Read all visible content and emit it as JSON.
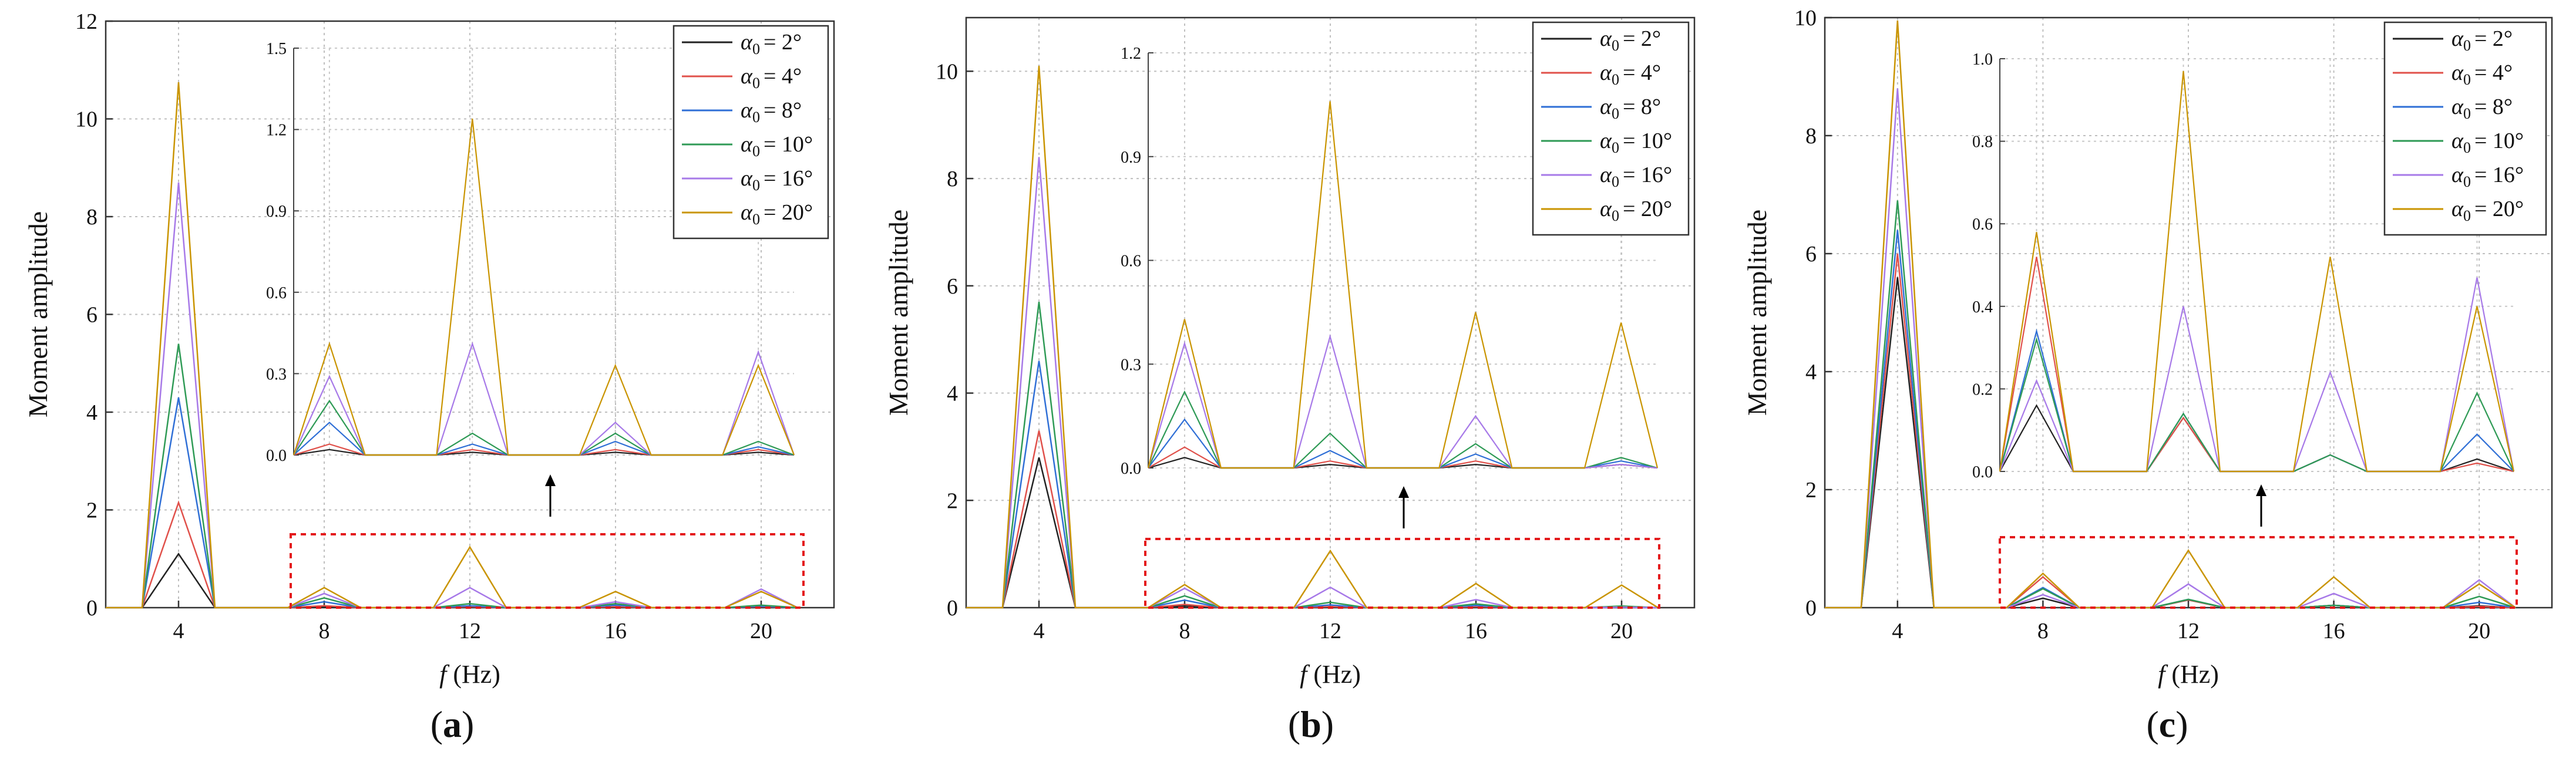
{
  "figure": {
    "legend_prefix": "α",
    "legend_sub": "0",
    "series_styles": [
      {
        "color": "#222222"
      },
      {
        "color": "#e0504a"
      },
      {
        "color": "#2f6fd6"
      },
      {
        "color": "#2e9a55"
      },
      {
        "color": "#a779e8"
      },
      {
        "color": "#c99400"
      }
    ]
  },
  "chart_data": [
    {
      "type": "line",
      "panel_label": "(a)",
      "label_text": "a",
      "title": "",
      "xlabel_var": "f",
      "xlabel_unit": " (Hz)",
      "ylabel": "Moment amplitude",
      "x": [
        2,
        3,
        4,
        5,
        6,
        7,
        8,
        9,
        10,
        11,
        12,
        13,
        14,
        15,
        16,
        17,
        18,
        19,
        20,
        21
      ],
      "xlim": [
        2,
        22
      ],
      "ylim": [
        0,
        12
      ],
      "xticks": [
        4,
        8,
        12,
        16,
        20
      ],
      "yticks": [
        0,
        2,
        4,
        6,
        8,
        10,
        12
      ],
      "series": [
        {
          "name": "= 2°",
          "values": [
            0,
            0,
            1.1,
            0,
            0,
            0,
            0.02,
            0,
            0,
            0,
            0.01,
            0,
            0,
            0,
            0.01,
            0,
            0,
            0,
            0.01,
            0
          ]
        },
        {
          "name": "= 4°",
          "values": [
            0,
            0,
            2.15,
            0,
            0,
            0,
            0.04,
            0,
            0,
            0,
            0.02,
            0,
            0,
            0,
            0.02,
            0,
            0,
            0,
            0.02,
            0
          ]
        },
        {
          "name": "= 8°",
          "values": [
            0,
            0,
            4.3,
            0,
            0,
            0,
            0.12,
            0,
            0,
            0,
            0.04,
            0,
            0,
            0,
            0.05,
            0,
            0,
            0,
            0.03,
            0
          ]
        },
        {
          "name": "= 10°",
          "values": [
            0,
            0,
            5.4,
            0,
            0,
            0,
            0.2,
            0,
            0,
            0,
            0.08,
            0,
            0,
            0,
            0.08,
            0,
            0,
            0,
            0.05,
            0
          ]
        },
        {
          "name": "= 16°",
          "values": [
            0,
            0,
            8.7,
            0,
            0,
            0,
            0.29,
            0,
            0,
            0,
            0.41,
            0,
            0,
            0,
            0.12,
            0,
            0,
            0,
            0.38,
            0
          ]
        },
        {
          "name": "= 20°",
          "values": [
            0,
            0,
            10.75,
            0,
            0,
            0,
            0.41,
            0,
            0,
            0,
            1.24,
            0,
            0,
            0,
            0.33,
            0,
            0,
            0,
            0.33,
            0
          ]
        }
      ],
      "inset": {
        "xlim": [
          7,
          21
        ],
        "ylim": [
          0,
          1.5
        ],
        "yticks": [
          0.0,
          0.3,
          0.6,
          0.9,
          1.2,
          1.5
        ]
      }
    },
    {
      "type": "line",
      "panel_label": "(b)",
      "label_text": "b",
      "title": "",
      "xlabel_var": "f",
      "xlabel_unit": " (Hz)",
      "ylabel": "Moment amplitude",
      "x": [
        2,
        3,
        4,
        5,
        6,
        7,
        8,
        9,
        10,
        11,
        12,
        13,
        14,
        15,
        16,
        17,
        18,
        19,
        20,
        21
      ],
      "xlim": [
        2,
        22
      ],
      "ylim": [
        0,
        11
      ],
      "xticks": [
        4,
        8,
        12,
        16,
        20
      ],
      "yticks": [
        0,
        2,
        4,
        6,
        8,
        10
      ],
      "series": [
        {
          "name": "= 2°",
          "values": [
            0,
            0,
            2.8,
            0,
            0,
            0,
            0.03,
            0,
            0,
            0,
            0.01,
            0,
            0,
            0,
            0.01,
            0,
            0,
            0,
            0.01,
            0
          ]
        },
        {
          "name": "= 4°",
          "values": [
            0,
            0,
            3.3,
            0,
            0,
            0,
            0.06,
            0,
            0,
            0,
            0.02,
            0,
            0,
            0,
            0.02,
            0,
            0,
            0,
            0.01,
            0
          ]
        },
        {
          "name": "= 8°",
          "values": [
            0,
            0,
            4.6,
            0,
            0,
            0,
            0.14,
            0,
            0,
            0,
            0.05,
            0,
            0,
            0,
            0.04,
            0,
            0,
            0,
            0.02,
            0
          ]
        },
        {
          "name": "= 10°",
          "values": [
            0,
            0,
            5.7,
            0,
            0,
            0,
            0.22,
            0,
            0,
            0,
            0.1,
            0,
            0,
            0,
            0.07,
            0,
            0,
            0,
            0.03,
            0
          ]
        },
        {
          "name": "= 16°",
          "values": [
            0,
            0,
            8.4,
            0,
            0,
            0,
            0.36,
            0,
            0,
            0,
            0.38,
            0,
            0,
            0,
            0.15,
            0,
            0,
            0,
            0.01,
            0
          ]
        },
        {
          "name": "= 20°",
          "values": [
            0,
            0,
            10.1,
            0,
            0,
            0,
            0.43,
            0,
            0,
            0,
            1.06,
            0,
            0,
            0,
            0.45,
            0,
            0,
            0,
            0.42,
            0
          ]
        }
      ],
      "inset": {
        "xlim": [
          7,
          21
        ],
        "ylim": [
          0,
          1.2
        ],
        "yticks": [
          0.0,
          0.3,
          0.6,
          0.9,
          1.2
        ]
      }
    },
    {
      "type": "line",
      "panel_label": "(c)",
      "label_text": "c",
      "title": "",
      "xlabel_var": "f",
      "xlabel_unit": " (Hz)",
      "ylabel": "Moment amplitude",
      "x": [
        2,
        3,
        4,
        5,
        6,
        7,
        8,
        9,
        10,
        11,
        12,
        13,
        14,
        15,
        16,
        17,
        18,
        19,
        20,
        21
      ],
      "xlim": [
        2,
        22
      ],
      "ylim": [
        0,
        10
      ],
      "xticks": [
        4,
        8,
        12,
        16,
        20
      ],
      "yticks": [
        0,
        2,
        4,
        6,
        8,
        10
      ],
      "series": [
        {
          "name": "= 2°",
          "values": [
            0,
            0,
            5.6,
            0,
            0,
            0,
            0.16,
            0,
            0,
            0,
            0.13,
            0,
            0,
            0,
            0.04,
            0,
            0,
            0,
            0.03,
            0
          ]
        },
        {
          "name": "= 4°",
          "values": [
            0,
            0,
            6.0,
            0,
            0,
            0,
            0.52,
            0,
            0,
            0,
            0.13,
            0,
            0,
            0,
            0.04,
            0,
            0,
            0,
            0.02,
            0
          ]
        },
        {
          "name": "= 8°",
          "values": [
            0,
            0,
            6.4,
            0,
            0,
            0,
            0.34,
            0,
            0,
            0,
            0.14,
            0,
            0,
            0,
            0.04,
            0,
            0,
            0,
            0.09,
            0
          ]
        },
        {
          "name": "= 10°",
          "values": [
            0,
            0,
            6.9,
            0,
            0,
            0,
            0.32,
            0,
            0,
            0,
            0.14,
            0,
            0,
            0,
            0.04,
            0,
            0,
            0,
            0.19,
            0
          ]
        },
        {
          "name": "= 16°",
          "values": [
            0,
            0,
            8.8,
            0,
            0,
            0,
            0.22,
            0,
            0,
            0,
            0.4,
            0,
            0,
            0,
            0.24,
            0,
            0,
            0,
            0.47,
            0
          ]
        },
        {
          "name": "= 20°",
          "values": [
            0,
            0,
            9.95,
            0,
            0,
            0,
            0.58,
            0,
            0,
            0,
            0.97,
            0,
            0,
            0,
            0.52,
            0,
            0,
            0,
            0.4,
            0
          ]
        }
      ],
      "inset": {
        "xlim": [
          7,
          21
        ],
        "ylim": [
          0,
          1.0
        ],
        "yticks": [
          0.0,
          0.2,
          0.4,
          0.6,
          0.8,
          1.0
        ]
      }
    }
  ]
}
